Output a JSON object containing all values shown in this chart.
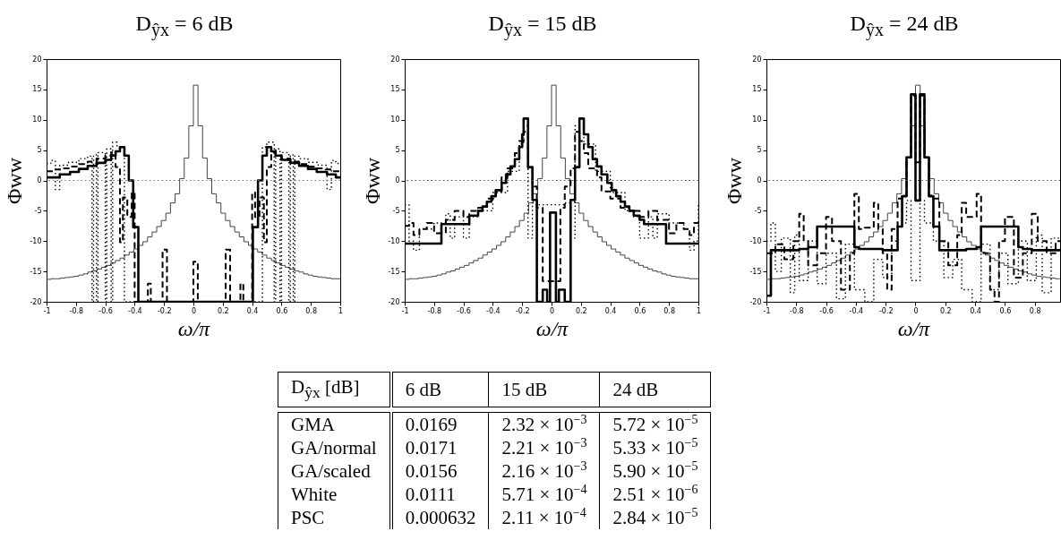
{
  "chart_data": [
    {
      "type": "step",
      "title": "D$_{ŷx}$ = 6 dB",
      "xlabel": "ω/π",
      "ylabel": "Φww",
      "xlim": [
        -1,
        1
      ],
      "ylim": [
        -20,
        20
      ],
      "xticks": [
        -1,
        -0.8,
        -0.6,
        -0.4,
        -0.2,
        0,
        0.2,
        0.4,
        0.6,
        0.8,
        1
      ],
      "yticks": [
        -20,
        -15,
        -10,
        -5,
        0,
        5,
        10,
        15,
        20
      ],
      "ref_lines": [
        {
          "axis": "y",
          "value": 0,
          "line_style": "dotted",
          "color": "#777777"
        }
      ],
      "series": [
        {
          "color": "#444444",
          "line_style": "solid",
          "x": [
            -1,
            -0.96875,
            -0.9375,
            -0.90625,
            -0.875,
            -0.84375,
            -0.8125,
            -0.78125,
            -0.75,
            -0.71875,
            -0.6875,
            -0.65625,
            -0.625,
            -0.59375,
            -0.5625,
            -0.53125,
            -0.5,
            -0.46875,
            -0.4375,
            -0.40625,
            -0.375,
            -0.34375,
            -0.3125,
            -0.28125,
            -0.25,
            -0.21875,
            -0.1875,
            -0.15625,
            -0.125,
            -0.09375,
            -0.0625,
            -0.03125,
            0,
            0.03125,
            0.0625,
            0.09375,
            0.125,
            0.15625,
            0.1875,
            0.21875,
            0.25,
            0.28125,
            0.3125,
            0.34375,
            0.375,
            0.40625,
            0.4375,
            0.46875,
            0.5,
            0.53125,
            0.5625,
            0.59375,
            0.625,
            0.65625,
            0.6875,
            0.71875,
            0.75,
            0.78125,
            0.8125,
            0.84375,
            0.875,
            0.90625,
            0.9375,
            0.96875,
            1
          ],
          "values": [
            -16.3,
            -16.2,
            -16.2,
            -16.1,
            -16.0,
            -15.9,
            -15.8,
            -15.6,
            -15.4,
            -15.1,
            -14.9,
            -14.6,
            -14.3,
            -14.0,
            -13.6,
            -13.2,
            -12.8,
            -12.3,
            -11.8,
            -11.3,
            -10.7,
            -10.1,
            -9.3,
            -8.5,
            -7.6,
            -6.6,
            -5.4,
            -3.7,
            -2.2,
            0.3,
            3.7,
            9.0,
            15.7,
            9.0,
            3.7,
            0.3,
            -2.2,
            -3.7,
            -5.4,
            -6.6,
            -7.6,
            -8.5,
            -9.3,
            -10.1,
            -10.7,
            -11.3,
            -11.8,
            -12.3,
            -12.8,
            -13.2,
            -13.6,
            -14.0,
            -14.3,
            -14.6,
            -14.9,
            -15.1,
            -15.4,
            -15.6,
            -15.8,
            -15.9,
            -16.0,
            -16.1,
            -16.2,
            -16.2,
            -16.3
          ]
        },
        {
          "color": "#000000",
          "line_style": "solid",
          "x": [
            -1,
            -0.91,
            -0.84,
            -0.78,
            -0.72,
            -0.66,
            -0.6,
            -0.56,
            -0.53,
            -0.5,
            -0.47,
            -0.44,
            -0.41,
            -0.375,
            0.405,
            0.44,
            0.47,
            0.5,
            0.53,
            0.56,
            0.6,
            0.66,
            0.72,
            0.78,
            0.84,
            0.91,
            0.97,
            1
          ],
          "values": [
            0.5,
            1.0,
            1.4,
            1.9,
            2.4,
            2.9,
            3.4,
            4.1,
            4.8,
            5.5,
            4.1,
            0.0,
            -7.7,
            -20,
            -7.7,
            0.0,
            4.1,
            5.5,
            4.8,
            4.1,
            3.4,
            2.9,
            2.4,
            1.9,
            1.4,
            1.0,
            0.5,
            0.5
          ]
        },
        {
          "color": "#000000",
          "line_style": "dashed",
          "x": [
            -1,
            -0.95,
            -0.9,
            -0.84,
            -0.78,
            -0.72,
            -0.66,
            -0.6,
            -0.56,
            -0.53,
            -0.5,
            -0.48,
            -0.45,
            -0.42,
            -0.4,
            -0.31,
            -0.29,
            -0.21,
            -0.18,
            0,
            0.03,
            0.22,
            0.25,
            0.32,
            0.34,
            0.4,
            0.42,
            0.45,
            0.48,
            0.5,
            0.53,
            0.56,
            0.6,
            0.66,
            0.72,
            0.78,
            0.84,
            0.9,
            0.95,
            1
          ],
          "values": [
            1.5,
            1.8,
            2.0,
            2.3,
            2.7,
            3.1,
            3.6,
            4.1,
            4.6,
            2.2,
            -10.2,
            -2.8,
            -6,
            -2.0,
            -20,
            -17,
            -20,
            -11.4,
            -20,
            -13.4,
            -20,
            -11.4,
            -20,
            -17,
            -20,
            -2.0,
            -6,
            -2.8,
            -10.2,
            2.2,
            4.6,
            4.1,
            3.6,
            3.1,
            2.7,
            2.3,
            2.0,
            1.8,
            1.5,
            1.5
          ]
        },
        {
          "color": "#000000",
          "line_style": "dotted",
          "x": [
            -1,
            -0.97,
            -0.94,
            -0.91,
            -0.85,
            -0.78,
            -0.72,
            -0.69,
            -0.68,
            -0.66,
            -0.65,
            -0.6,
            -0.59,
            -0.56,
            -0.55,
            -0.52,
            -0.47,
            0.47,
            0.5,
            0.55,
            0.56,
            0.59,
            0.6,
            0.65,
            0.66,
            0.68,
            0.69,
            0.72,
            0.78,
            0.85,
            0.91,
            0.94,
            0.97,
            1
          ],
          "values": [
            2.8,
            3.3,
            -1.5,
            2.5,
            3.0,
            3.6,
            4.0,
            -20,
            4.2,
            -20,
            4.6,
            -20,
            5.2,
            -20,
            6.3,
            5.5,
            -20,
            5.5,
            6.3,
            -20,
            5.2,
            -20,
            4.6,
            -20,
            4.2,
            -20,
            4.0,
            3.6,
            3.0,
            2.5,
            -1.5,
            3.3,
            2.8,
            2.8
          ]
        }
      ]
    },
    {
      "type": "step",
      "title": "D$_{ŷx}$ = 15 dB",
      "xlabel": "ω/π",
      "ylabel": "Φww",
      "xlim": [
        -1,
        1
      ],
      "ylim": [
        -20,
        20
      ],
      "xticks": [
        -1,
        -0.8,
        -0.6,
        -0.4,
        -0.2,
        0,
        0.2,
        0.4,
        0.6,
        0.8,
        1
      ],
      "yticks": [
        -20,
        -15,
        -10,
        -5,
        0,
        5,
        10,
        15,
        20
      ],
      "ref_lines": [
        {
          "axis": "y",
          "value": 0,
          "line_style": "dotted",
          "color": "#555555"
        }
      ],
      "series": [
        {
          "color": "#444444",
          "line_style": "solid",
          "x": [
            -1,
            -0.96875,
            -0.9375,
            -0.90625,
            -0.875,
            -0.84375,
            -0.8125,
            -0.78125,
            -0.75,
            -0.71875,
            -0.6875,
            -0.65625,
            -0.625,
            -0.59375,
            -0.5625,
            -0.53125,
            -0.5,
            -0.46875,
            -0.4375,
            -0.40625,
            -0.375,
            -0.34375,
            -0.3125,
            -0.28125,
            -0.25,
            -0.21875,
            -0.1875,
            -0.15625,
            -0.125,
            -0.09375,
            -0.0625,
            -0.03125,
            0,
            0.03125,
            0.0625,
            0.09375,
            0.125,
            0.15625,
            0.1875,
            0.21875,
            0.25,
            0.28125,
            0.3125,
            0.34375,
            0.375,
            0.40625,
            0.4375,
            0.46875,
            0.5,
            0.53125,
            0.5625,
            0.59375,
            0.625,
            0.65625,
            0.6875,
            0.71875,
            0.75,
            0.78125,
            0.8125,
            0.84375,
            0.875,
            0.90625,
            0.9375,
            0.96875,
            1
          ],
          "values": [
            -16.3,
            -16.2,
            -16.2,
            -16.1,
            -16.0,
            -15.9,
            -15.8,
            -15.6,
            -15.4,
            -15.1,
            -14.9,
            -14.6,
            -14.3,
            -14.0,
            -13.6,
            -13.2,
            -12.8,
            -12.3,
            -11.8,
            -11.3,
            -10.7,
            -10.1,
            -9.3,
            -8.5,
            -7.6,
            -6.6,
            -5.4,
            -3.7,
            -2.2,
            0.3,
            3.7,
            9.0,
            15.7,
            9.0,
            3.7,
            0.3,
            -2.2,
            -3.7,
            -5.4,
            -6.6,
            -7.6,
            -8.5,
            -9.3,
            -10.1,
            -10.7,
            -11.3,
            -11.8,
            -12.3,
            -12.8,
            -13.2,
            -13.6,
            -14.0,
            -14.3,
            -14.6,
            -14.9,
            -15.1,
            -15.4,
            -15.6,
            -15.8,
            -15.9,
            -16.0,
            -16.1,
            -16.2,
            -16.2,
            -16.3
          ]
        },
        {
          "color": "#000000",
          "line_style": "solid",
          "x": [
            -1,
            -0.75,
            -0.56,
            -0.5,
            -0.47,
            -0.44,
            -0.41,
            -0.38,
            -0.34,
            -0.31,
            -0.28,
            -0.25,
            -0.22,
            -0.2,
            -0.19,
            -0.16,
            -0.13,
            -0.1,
            -0.06,
            -0.03,
            -0.01,
            0.03,
            0.05,
            0.09,
            0.13,
            0.16,
            0.19,
            0.22,
            0.25,
            0.28,
            0.31,
            0.34,
            0.38,
            0.41,
            0.44,
            0.47,
            0.5,
            0.53,
            0.56,
            0.6,
            0.63,
            0.78,
            1
          ],
          "values": [
            -10.4,
            -7.2,
            -5.8,
            -5.0,
            -4.3,
            -3.5,
            -2.6,
            -1.6,
            -0.4,
            1.0,
            2.3,
            3.5,
            5.5,
            7.6,
            10.2,
            2.2,
            -3.2,
            -20,
            -18,
            -20,
            -5.3,
            -20,
            -18,
            -20,
            -3.2,
            2.2,
            10.2,
            7.6,
            5.5,
            3.5,
            2.3,
            1.0,
            -0.4,
            -1.6,
            -2.6,
            -3.5,
            -4.3,
            -5.0,
            -5.8,
            -6.5,
            -7.2,
            -10.4,
            -10.4
          ]
        },
        {
          "color": "#000000",
          "line_style": "dashed",
          "x": [
            -1,
            -0.97,
            -0.94,
            -0.9,
            -0.85,
            -0.8,
            -0.72,
            -0.66,
            -0.6,
            -0.56,
            -0.5,
            -0.44,
            -0.38,
            -0.34,
            -0.3,
            -0.25,
            -0.22,
            -0.19,
            -0.16,
            -0.13,
            -0.1,
            -0.06,
            0.06,
            0.09,
            0.13,
            0.16,
            0.19,
            0.22,
            0.25,
            0.31,
            0.34,
            0.4,
            0.47,
            0.53,
            0.6,
            0.66,
            0.72,
            0.8,
            0.85,
            0.9,
            0.94,
            0.97,
            1
          ],
          "values": [
            -7.5,
            -7.0,
            -9.0,
            -8.0,
            -7.0,
            -8.7,
            -6.5,
            -5.0,
            -6.0,
            -5.0,
            -4.5,
            -3.0,
            -1.8,
            0.5,
            2.0,
            4.5,
            6.5,
            8.0,
            2.0,
            -1.0,
            -4.5,
            -16.6,
            -4.5,
            -1.0,
            2.0,
            8.0,
            6.5,
            4.5,
            2.0,
            0.5,
            -1.8,
            -3.0,
            -4.5,
            -5.0,
            -6.0,
            -5.0,
            -6.5,
            -8.7,
            -7.0,
            -8.0,
            -9.0,
            -7.0,
            -7.0
          ]
        },
        {
          "color": "#000000",
          "line_style": "dotted",
          "x": [
            -1,
            -0.97,
            -0.94,
            -0.9,
            -0.8,
            -0.72,
            -0.69,
            -0.66,
            -0.6,
            -0.56,
            -0.5,
            -0.4,
            -0.3,
            -0.22,
            -0.19,
            -0.16,
            -0.13,
            -0.09,
            0.09,
            0.13,
            0.16,
            0.22,
            0.3,
            0.4,
            0.5,
            0.56,
            0.6,
            0.66,
            0.69,
            0.72,
            0.8,
            0.9,
            0.94,
            0.97,
            1
          ],
          "values": [
            -4.0,
            -10,
            -11.5,
            -8,
            -7,
            -5.5,
            -9.5,
            -6.0,
            -9.5,
            -6,
            -5,
            -2,
            1.5,
            6,
            9,
            -9.5,
            -3.7,
            -4.0,
            -3.7,
            -9.5,
            9,
            6,
            1.5,
            -2,
            -5,
            -6,
            -9.5,
            -6,
            -9.5,
            -5.5,
            -7,
            -8,
            -11.5,
            -10,
            -4
          ]
        }
      ]
    },
    {
      "type": "step",
      "title": "D$_{ŷx}$ = 24 dB",
      "xlabel": "ω/π",
      "ylabel": "Φww",
      "xlim": [
        -1,
        0.97
      ],
      "ylim": [
        -20,
        20
      ],
      "xticks": [
        -1,
        -0.8,
        -0.6,
        -0.4,
        -0.2,
        0,
        0.2,
        0.4,
        0.6,
        0.8
      ],
      "yticks": [
        -20,
        -15,
        -10,
        -5,
        0,
        5,
        10,
        15,
        20
      ],
      "ref_lines": [
        {
          "axis": "y",
          "value": 0,
          "line_style": "dotted",
          "color": "#555555"
        }
      ],
      "series": [
        {
          "color": "#444444",
          "line_style": "solid",
          "x": [
            -1,
            -0.96875,
            -0.9375,
            -0.90625,
            -0.875,
            -0.84375,
            -0.8125,
            -0.78125,
            -0.75,
            -0.71875,
            -0.6875,
            -0.65625,
            -0.625,
            -0.59375,
            -0.5625,
            -0.53125,
            -0.5,
            -0.46875,
            -0.4375,
            -0.40625,
            -0.375,
            -0.34375,
            -0.3125,
            -0.28125,
            -0.25,
            -0.21875,
            -0.1875,
            -0.15625,
            -0.125,
            -0.09375,
            -0.0625,
            -0.03125,
            0,
            0.03125,
            0.0625,
            0.09375,
            0.125,
            0.15625,
            0.1875,
            0.21875,
            0.25,
            0.28125,
            0.3125,
            0.34375,
            0.375,
            0.40625,
            0.4375,
            0.46875,
            0.5,
            0.53125,
            0.5625,
            0.59375,
            0.625,
            0.65625,
            0.6875,
            0.71875,
            0.75,
            0.78125,
            0.8125,
            0.84375,
            0.875,
            0.90625,
            0.9375,
            0.96875
          ],
          "values": [
            -16.3,
            -16.2,
            -16.2,
            -16.1,
            -16.0,
            -15.9,
            -15.8,
            -15.6,
            -15.4,
            -15.1,
            -14.9,
            -14.6,
            -14.3,
            -14.0,
            -13.6,
            -13.2,
            -12.8,
            -12.3,
            -11.8,
            -11.3,
            -10.7,
            -10.1,
            -9.3,
            -8.5,
            -7.6,
            -6.6,
            -5.4,
            -3.7,
            -2.2,
            0.3,
            3.7,
            9.0,
            15.7,
            9.0,
            3.7,
            0.3,
            -2.2,
            -3.7,
            -5.4,
            -6.6,
            -7.6,
            -8.5,
            -9.3,
            -10.1,
            -10.7,
            -11.3,
            -11.8,
            -12.3,
            -12.8,
            -13.2,
            -13.6,
            -14.0,
            -14.3,
            -14.6,
            -14.9,
            -15.1,
            -15.4,
            -15.6,
            -15.8,
            -15.9,
            -16.0,
            -16.1,
            -16.2,
            -16.2
          ]
        },
        {
          "color": "#000000",
          "line_style": "solid",
          "x": [
            -1,
            -0.97,
            -0.78,
            -0.72,
            -0.66,
            -0.41,
            -0.38,
            -0.22,
            -0.12,
            -0.09,
            -0.06,
            -0.03,
            0,
            0.03,
            0.06,
            0.09,
            0.12,
            0.16,
            0.34,
            0.41,
            0.44,
            0.69,
            0.72,
            0.78,
            0.97
          ],
          "values": [
            -19,
            -11.5,
            -11.3,
            -11.0,
            -7.6,
            -11.0,
            -11.3,
            -11.5,
            -7.6,
            -2.6,
            3.8,
            14.2,
            -3.3,
            14.2,
            3.8,
            -2.6,
            -7.6,
            -11.5,
            -11.3,
            -11.0,
            -7.6,
            -11.0,
            -11.3,
            -11.5,
            -11.5
          ]
        },
        {
          "color": "#000000",
          "line_style": "dashed",
          "x": [
            -1,
            -0.94,
            -0.88,
            -0.82,
            -0.78,
            -0.75,
            -0.72,
            -0.66,
            -0.6,
            -0.56,
            -0.5,
            -0.44,
            -0.41,
            -0.38,
            -0.34,
            -0.28,
            -0.25,
            -0.22,
            -0.19,
            -0.16,
            -0.12,
            -0.09,
            -0.06,
            -0.03,
            0,
            0.03,
            0.06,
            0.09,
            0.12,
            0.16,
            0.22,
            0.28,
            0.31,
            0.34,
            0.41,
            0.44,
            0.5,
            0.53,
            0.56,
            0.6,
            0.66,
            0.72,
            0.78,
            0.82,
            0.88,
            0.94,
            0.97
          ],
          "values": [
            -12,
            -10.5,
            -13,
            -10,
            -5.5,
            -10,
            -14,
            -12,
            -6,
            -10,
            -18,
            -12,
            -2.2,
            -8,
            -7.8,
            -3.7,
            -8,
            -12,
            -18,
            -8,
            -3,
            -2.5,
            3.8,
            14,
            3,
            14,
            3.8,
            -2.5,
            -3,
            -10,
            -14,
            -9,
            -3.7,
            -6,
            -2.2,
            -12,
            -18,
            -20,
            -10,
            -6,
            -16,
            -12,
            -5.5,
            -10,
            -12,
            -10,
            -10
          ]
        },
        {
          "color": "#000000",
          "line_style": "dotted",
          "x": [
            -1,
            -0.97,
            -0.94,
            -0.9,
            -0.84,
            -0.81,
            -0.78,
            -0.72,
            -0.66,
            -0.6,
            -0.53,
            -0.47,
            -0.41,
            -0.34,
            -0.28,
            -0.22,
            -0.16,
            -0.12,
            -0.06,
            -0.03,
            0.03,
            0.06,
            0.12,
            0.19,
            0.25,
            0.31,
            0.38,
            0.44,
            0.5,
            0.56,
            0.62,
            0.69,
            0.75,
            0.81,
            0.85,
            0.91,
            0.97
          ],
          "values": [
            -10,
            -7,
            -15,
            -9.5,
            -18.5,
            -9,
            -16.5,
            -10,
            -17,
            -12,
            -19.5,
            -10.5,
            -18,
            -20,
            -13,
            -16,
            -10,
            -7,
            -3.3,
            -16.5,
            -3.3,
            -7,
            -10,
            -16,
            -13,
            -18,
            -20,
            -10.5,
            -18,
            -12,
            -17,
            -10,
            -16.5,
            -9,
            -18.5,
            -9.5,
            -9.5
          ]
        }
      ]
    },
    {
      "type": "other",
      "annotations": [
        "D$_{ŷx}$ [dB]",
        "6 dB",
        "15 dB",
        "24 dB",
        "GMA",
        "0.0169",
        "2.32 × 10$^{−3}$",
        "5.72 × 10$^{−5}$",
        "GA/normal",
        "0.0171",
        "2.21 × 10$^{−3}$",
        "5.33 × 10$^{−5}$",
        "GA/scaled",
        "0.0156",
        "2.16 × 10$^{−3}$",
        "5.90 × 10$^{−5}$",
        "White",
        "0.0111",
        "5.71 × 10$^{−4}$",
        "2.51 × 10$^{−6}$",
        "PSC",
        "0.000632",
        "2.11 × 10$^{−4}$",
        "2.84 × 10$^{−5}$"
      ]
    }
  ]
}
